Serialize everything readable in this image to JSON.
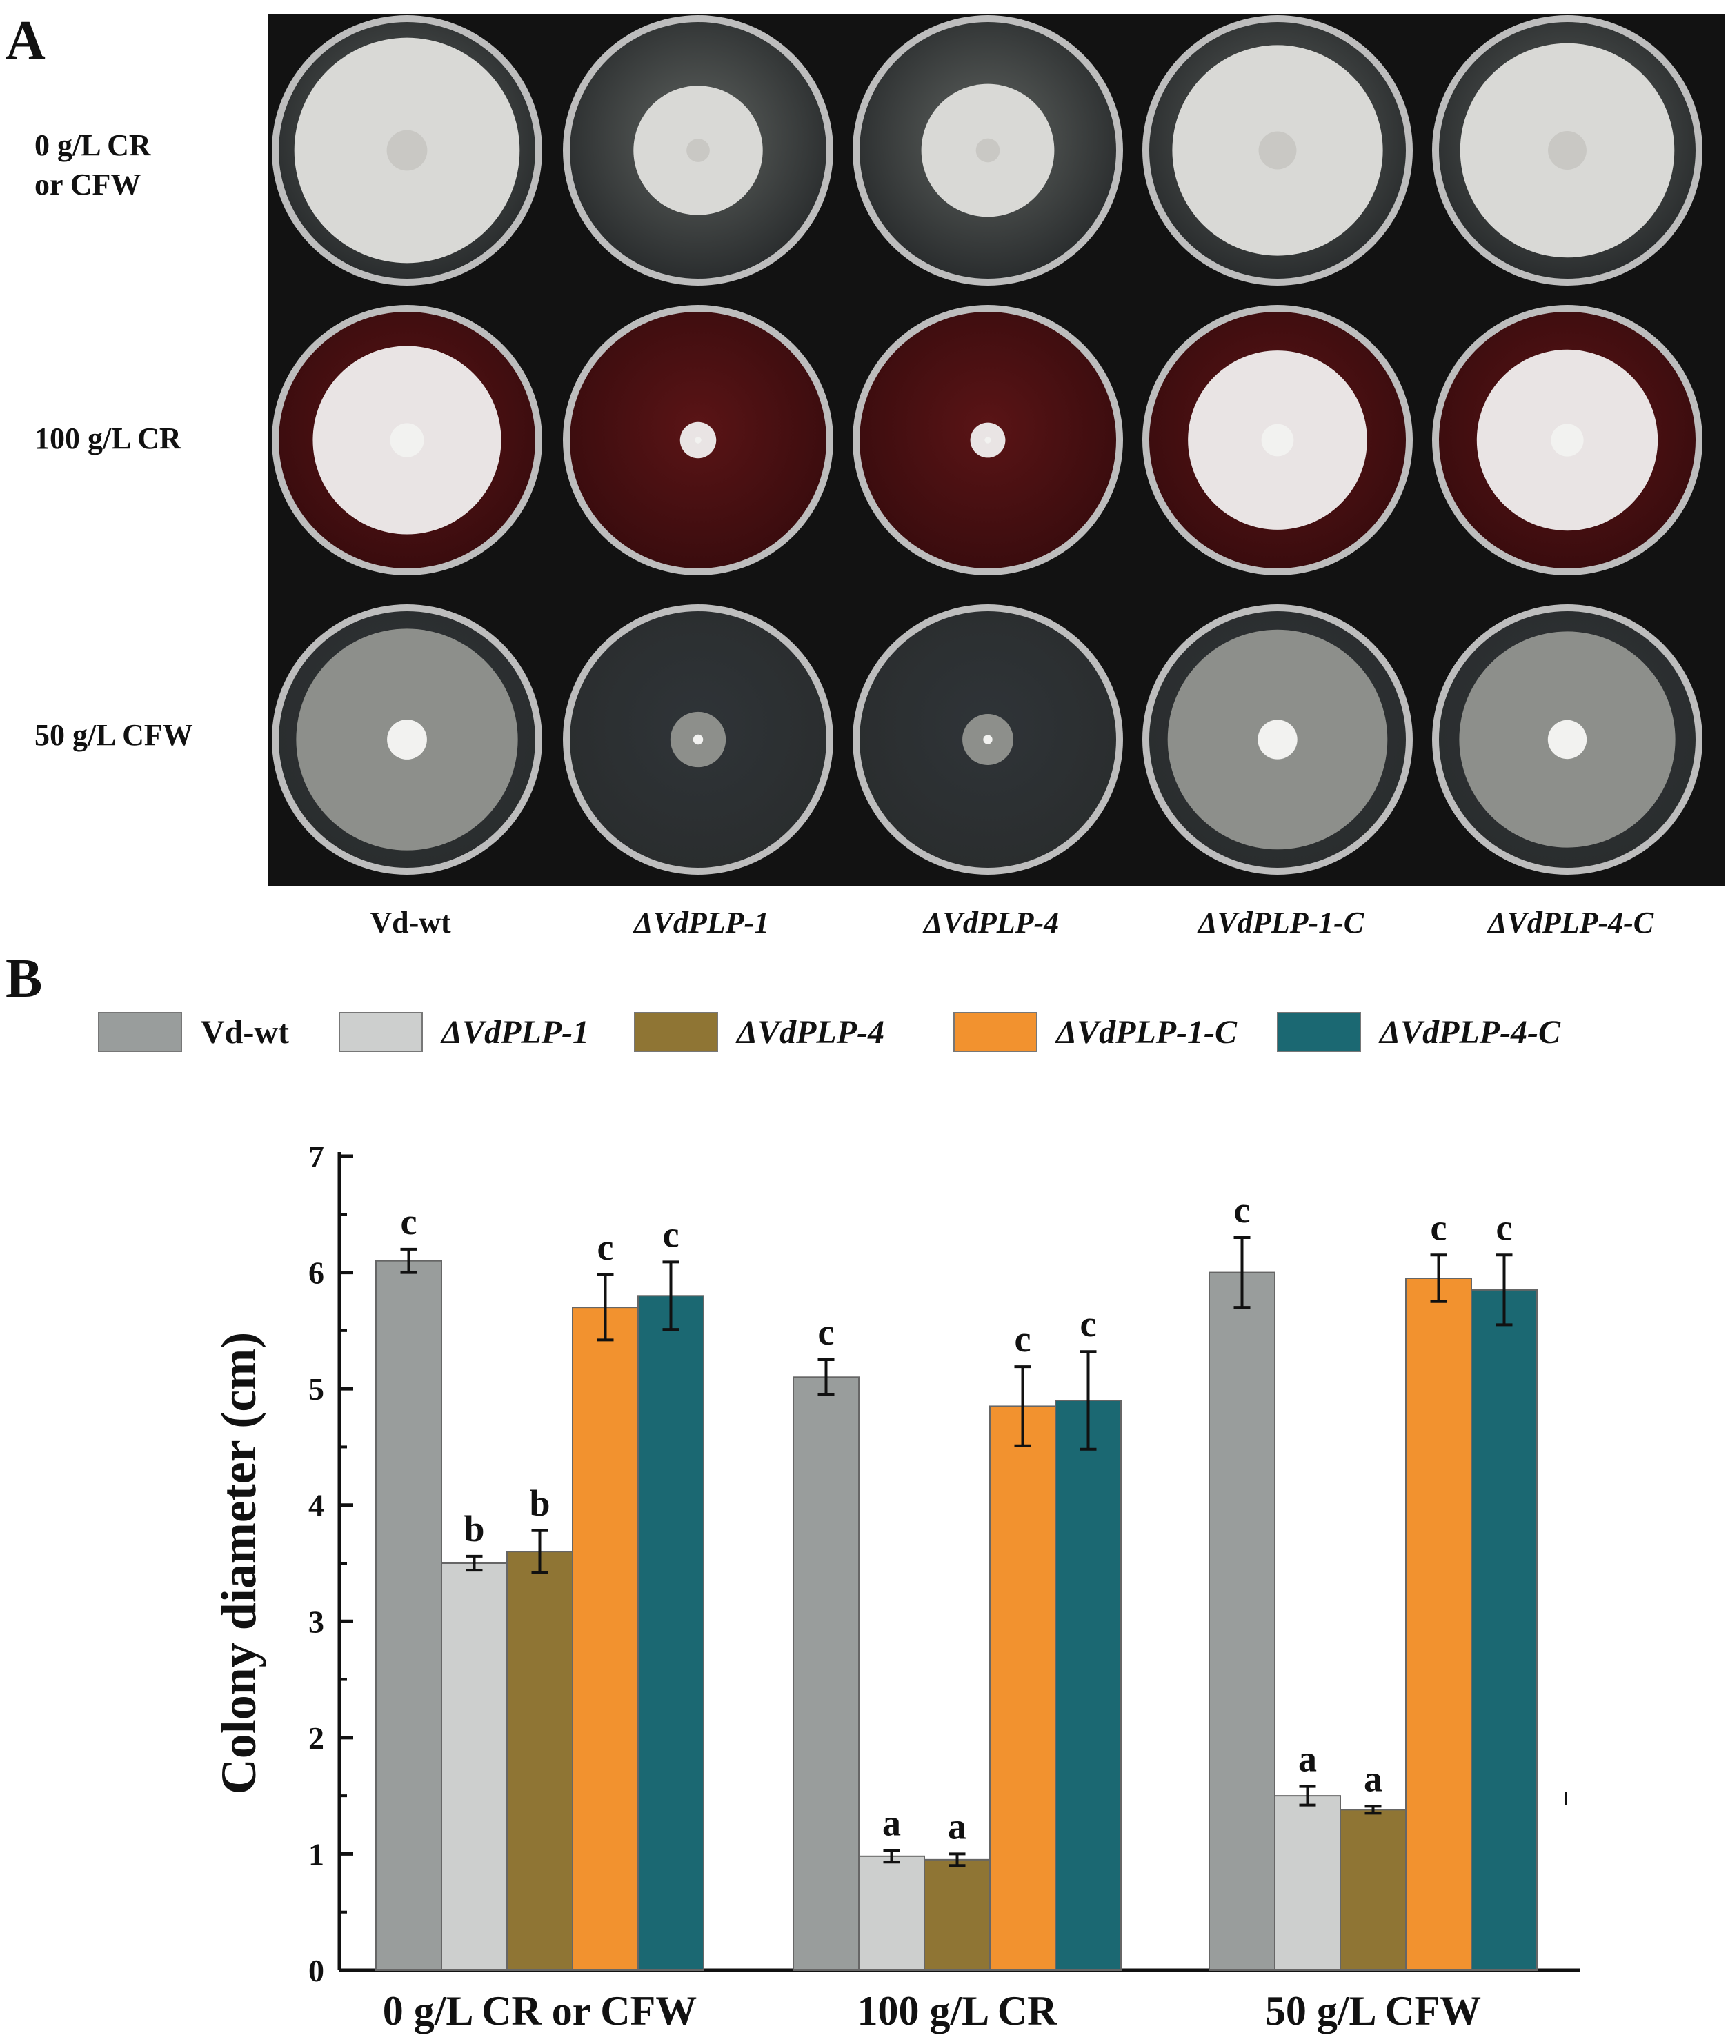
{
  "panel_a": {
    "label": "A",
    "row_labels": [
      {
        "lines": [
          "0 g/L CR",
          "or CFW"
        ]
      },
      {
        "lines": [
          "100 g/L CR"
        ]
      },
      {
        "lines": [
          "50 g/L CFW"
        ]
      }
    ],
    "strains": [
      "Vd-wt",
      "ΔVdPLP-1",
      "ΔVdPLP-4",
      "ΔVdPLP-1-C",
      "ΔVdPLP-4-C"
    ],
    "strain_italic": [
      false,
      true,
      true,
      true,
      true
    ],
    "plate_colors": {
      "background": "#121212",
      "agar_control": "#5f6360",
      "agar_cr": "#5a1416",
      "agar_cfw": "#2f3438",
      "colony_control": "#d9d9d6",
      "colony_cr": "#e9e4e4",
      "colony_cfw": "#8d8f8b"
    },
    "colony_diameters_cm": [
      [
        6.1,
        3.5,
        3.6,
        5.7,
        5.8
      ],
      [
        5.1,
        0.98,
        0.95,
        4.85,
        4.9
      ],
      [
        6.0,
        1.5,
        1.38,
        5.95,
        5.85
      ]
    ]
  },
  "panel_b": {
    "label": "B"
  },
  "chart_data": {
    "type": "bar",
    "categories": [
      "0 g/L CR or CFW",
      "100 g/L CR",
      "50 g/L CFW"
    ],
    "xlabel": "",
    "ylabel": "Colony diameter (cm)",
    "ylim": [
      0,
      7
    ],
    "yticks": [
      0,
      1,
      2,
      3,
      4,
      5,
      6,
      7
    ],
    "legend_position": "top",
    "series": [
      {
        "name": "Vd-wt",
        "italic": false,
        "color": "#999d9c",
        "values": [
          6.1,
          5.1,
          6.0
        ],
        "errors": [
          0.1,
          0.15,
          0.3
        ],
        "letters": [
          "c",
          "c",
          "c"
        ]
      },
      {
        "name": "ΔVdPLP-1",
        "italic": true,
        "color": "#cdcfce",
        "values": [
          3.5,
          0.98,
          1.5
        ],
        "errors": [
          0.06,
          0.05,
          0.08
        ],
        "letters": [
          "b",
          "a",
          "a"
        ]
      },
      {
        "name": "ΔVdPLP-4",
        "italic": true,
        "color": "#8f7534",
        "values": [
          3.6,
          0.95,
          1.38
        ],
        "errors": [
          0.18,
          0.05,
          0.03
        ],
        "letters": [
          "b",
          "a",
          "a"
        ]
      },
      {
        "name": "ΔVdPLP-1-C",
        "italic": true,
        "color": "#f2922f",
        "values": [
          5.7,
          4.85,
          5.95
        ],
        "errors": [
          0.28,
          0.34,
          0.2
        ],
        "letters": [
          "c",
          "c",
          "c"
        ]
      },
      {
        "name": "ΔVdPLP-4-C",
        "italic": true,
        "color": "#1b6872",
        "values": [
          5.8,
          4.9,
          5.85
        ],
        "errors": [
          0.29,
          0.42,
          0.3
        ],
        "letters": [
          "c",
          "c",
          "c"
        ]
      }
    ]
  }
}
